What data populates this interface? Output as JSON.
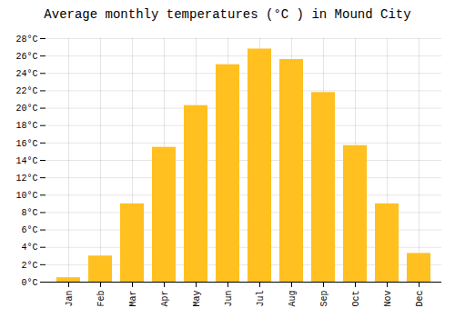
{
  "chart_data": {
    "type": "bar",
    "title": "Average monthly temperatures (°C ) in Mound City",
    "categories": [
      "Jan",
      "Feb",
      "Mar",
      "Apr",
      "May",
      "Jun",
      "Jul",
      "Aug",
      "Sep",
      "Oct",
      "Nov",
      "Dec"
    ],
    "values": [
      0.5,
      3.0,
      9.0,
      15.5,
      20.3,
      25.0,
      26.8,
      25.6,
      21.8,
      15.7,
      9.0,
      3.3
    ],
    "color": "#FFC020",
    "ylim": [
      0,
      28
    ],
    "yticks": [
      {
        "value": 0,
        "label": "0°C"
      },
      {
        "value": 2,
        "label": "2°C"
      },
      {
        "value": 4,
        "label": "4°C"
      },
      {
        "value": 6,
        "label": "6°C"
      },
      {
        "value": 8,
        "label": "8°C"
      },
      {
        "value": 10,
        "label": "10°C"
      },
      {
        "value": 12,
        "label": "12°C"
      },
      {
        "value": 14,
        "label": "14°C"
      },
      {
        "value": 16,
        "label": "16°C"
      },
      {
        "value": 18,
        "label": "18°C"
      },
      {
        "value": 20,
        "label": "20°C"
      },
      {
        "value": 22,
        "label": "22°C"
      },
      {
        "value": 24,
        "label": "24°C"
      },
      {
        "value": 26,
        "label": "26°C"
      },
      {
        "value": 28,
        "label": "28°C"
      }
    ],
    "grid": true
  }
}
